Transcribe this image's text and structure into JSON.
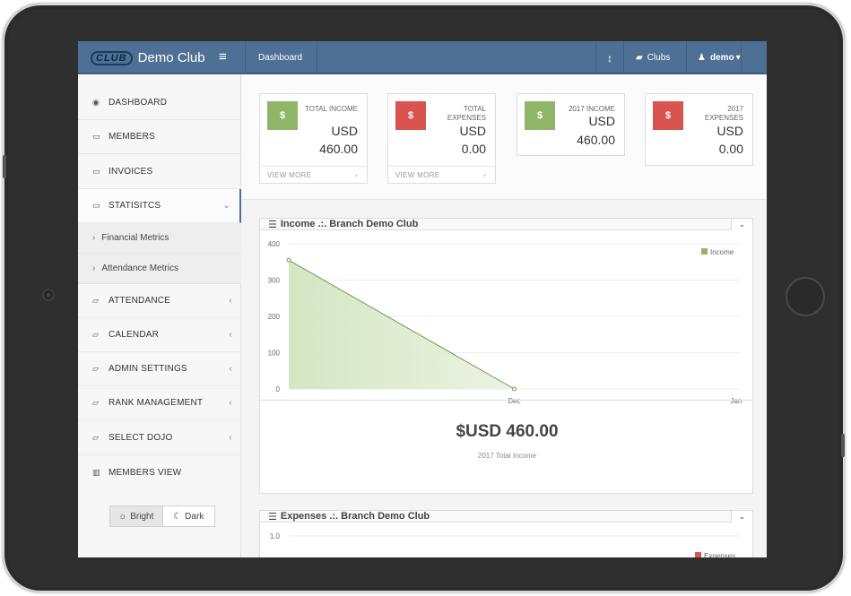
{
  "app": {
    "logo_text": "CLUB",
    "brand_name": "Demo Club"
  },
  "topbar": {
    "menu_icon": "hamburger-icon",
    "breadcrumb": "Dashboard",
    "sort_icon": "updown-arrow-icon",
    "clubs_label": "Clubs",
    "user_label": "demo",
    "user_caret": "▾"
  },
  "sidebar": {
    "items": [
      {
        "label": "DASHBOARD",
        "icon": "dashboard-icon"
      },
      {
        "label": "MEMBERS",
        "icon": "monitor-icon"
      },
      {
        "label": "INVOICES",
        "icon": "monitor-icon"
      },
      {
        "label": "STATISITCS",
        "icon": "monitor-icon",
        "chevron": "⌄"
      },
      {
        "label": "ATTENDANCE",
        "icon": "folder-icon",
        "chevron": "‹"
      },
      {
        "label": "CALENDAR",
        "icon": "folder-icon",
        "chevron": "‹"
      },
      {
        "label": "ADMIN SETTINGS",
        "icon": "folder-icon",
        "chevron": "‹"
      },
      {
        "label": "RANK MANAGEMENT",
        "icon": "folder-icon",
        "chevron": "‹"
      },
      {
        "label": "SELECT DOJO",
        "icon": "folder-icon",
        "chevron": "‹"
      },
      {
        "label": "MEMBERS VIEW",
        "icon": "bar-chart-icon"
      }
    ],
    "subitems": [
      "Financial Metrics",
      "Attendance Metrics"
    ],
    "theme": {
      "bright": "Bright",
      "dark": "Dark",
      "selected": "Bright"
    }
  },
  "stats": [
    {
      "label": "TOTAL INCOME",
      "currency": "USD",
      "amount": "460.00",
      "symbol": "$",
      "color": "#8fb569",
      "footer": "VIEW MORE"
    },
    {
      "label": "TOTAL EXPENSES",
      "currency": "USD",
      "amount": "0.00",
      "symbol": "$",
      "color": "#d9534f",
      "footer": "VIEW MORE"
    },
    {
      "label": "2017 INCOME",
      "currency": "USD",
      "amount": "460.00",
      "symbol": "$",
      "color": "#8fb569"
    },
    {
      "label": "2017 EXPENSES",
      "currency": "USD",
      "amount": "0.00",
      "symbol": "$",
      "color": "#d9534f"
    }
  ],
  "income_panel": {
    "title": "Income .:. Branch Demo Club",
    "total": "$USD 460.00",
    "total_label": "2017 Total Income"
  },
  "expenses_panel": {
    "title": "Expenses .:. Branch Demo Club"
  },
  "chart_data": [
    {
      "type": "area",
      "title": "Income .:. Branch Demo Club",
      "categories": [
        "",
        "Dec",
        "Jan"
      ],
      "series": [
        {
          "name": "Income",
          "values": [
            355,
            0,
            null
          ],
          "color": "#8fb569"
        }
      ],
      "yticks": [
        0,
        100,
        200,
        300,
        400
      ],
      "ylim": [
        0,
        400
      ],
      "legend": "top-right",
      "grid": true
    },
    {
      "type": "area",
      "title": "Expenses .:. Branch Demo Club",
      "series": [
        {
          "name": "Expenses",
          "values": [],
          "color": "#d9534f"
        }
      ],
      "yticks": [
        1.0
      ],
      "legend": "top-right",
      "grid": true
    }
  ]
}
